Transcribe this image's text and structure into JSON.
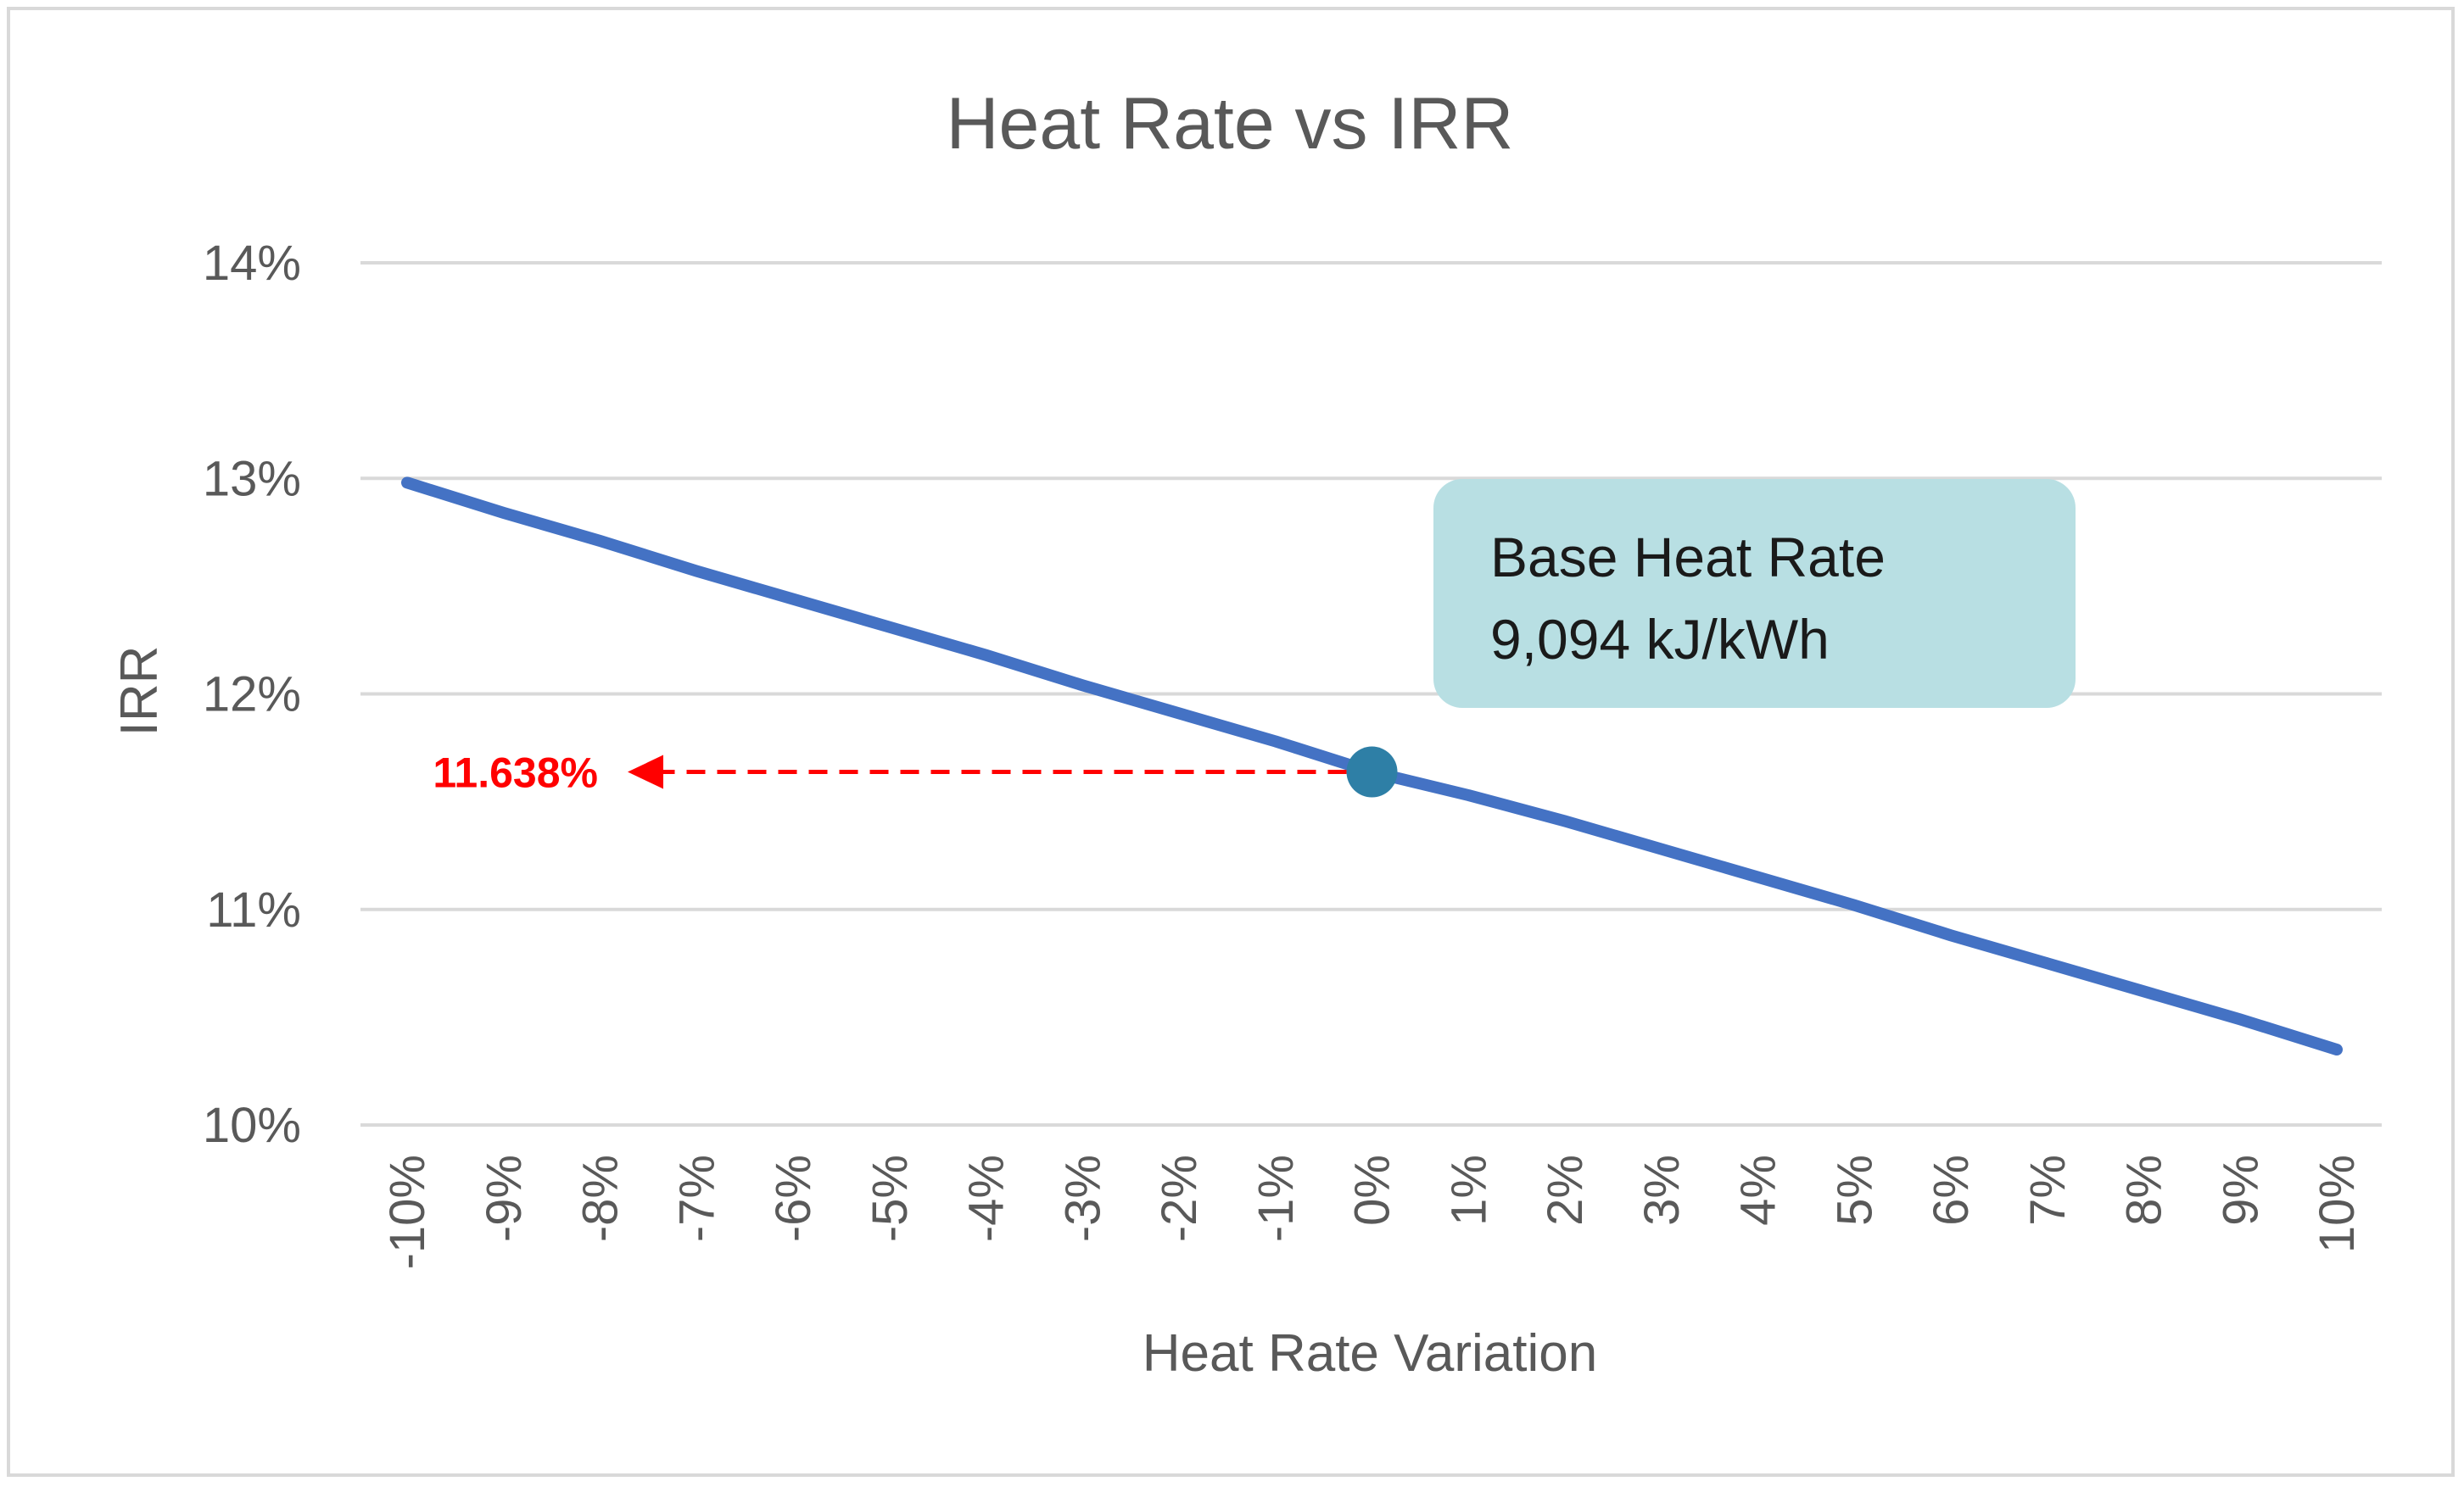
{
  "chart_data": {
    "type": "line",
    "title": "Heat Rate vs IRR",
    "xlabel": "Heat Rate Variation",
    "ylabel": "IRR",
    "x": [
      "-10%",
      "-9%",
      "-8%",
      "-7%",
      "-6%",
      "-5%",
      "-4%",
      "-3%",
      "-2%",
      "-1%",
      "0%",
      "1%",
      "2%",
      "3%",
      "4%",
      "5%",
      "6%",
      "7%",
      "8%",
      "9%",
      "10%"
    ],
    "series": [
      {
        "values": [
          12.98,
          12.84,
          12.71,
          12.57,
          12.44,
          12.31,
          12.18,
          12.04,
          11.91,
          11.78,
          11.638,
          11.53,
          11.41,
          11.28,
          11.15,
          11.02,
          10.88,
          10.75,
          10.62,
          10.49,
          10.35
        ]
      }
    ],
    "yticks": [
      "10%",
      "11%",
      "12%",
      "13%",
      "14%"
    ],
    "ylim": [
      10,
      14
    ],
    "grid": true,
    "legend": "none",
    "line_color": "#4472c4",
    "highlight": {
      "x": "0%",
      "value": 11.638,
      "label": "11.638%",
      "color": "#ff0000",
      "point_color": "#2e7fa6"
    },
    "callout": {
      "line1": "Base Heat Rate",
      "line2": "9,094 kJ/kWh",
      "color": "#b8dfe3"
    }
  }
}
